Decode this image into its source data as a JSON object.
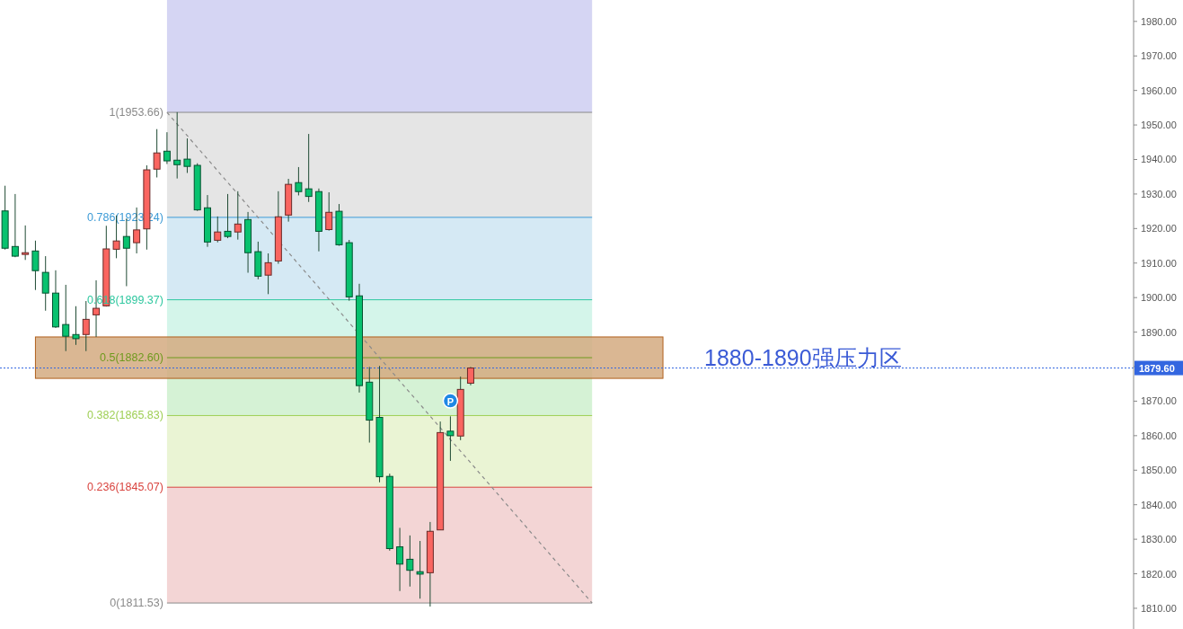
{
  "chart_data": {
    "type": "candlestick",
    "categories": [
      null,
      null,
      null,
      null,
      null,
      null,
      null,
      null,
      null,
      null,
      null,
      null,
      null,
      null,
      null,
      null,
      null,
      null,
      null,
      null,
      null,
      null,
      null,
      null,
      null,
      null,
      null,
      null,
      null,
      null,
      null,
      null,
      null,
      null,
      null,
      null,
      null,
      null,
      null,
      null,
      null,
      null,
      null,
      null,
      null,
      null,
      null,
      null,
      null,
      null,
      null,
      null,
      null,
      null,
      null,
      null,
      null,
      null,
      null,
      null,
      null,
      null,
      null,
      null,
      null,
      null,
      null,
      null,
      null,
      null,
      null,
      null,
      null,
      null,
      null,
      null,
      null,
      null,
      null,
      null,
      null,
      null,
      null,
      null,
      null,
      null,
      null,
      null,
      null,
      null,
      null,
      null,
      null,
      null,
      null,
      null,
      null,
      null,
      null,
      null,
      null,
      null,
      null,
      null,
      null,
      null,
      null,
      null,
      null,
      null,
      null,
      null
    ],
    "ohlc": [
      [
        1925.1,
        1932.4,
        1913.9,
        1914.3
      ],
      [
        1914.8,
        1930.0,
        1911.7,
        1912.0
      ],
      [
        1912.5,
        1920.9,
        1910.9,
        1913.0
      ],
      [
        1913.5,
        1916.5,
        1902.2,
        1907.8
      ],
      [
        1907.3,
        1912.0,
        1896.2,
        1901.3
      ],
      [
        1901.3,
        1907.9,
        1891.2,
        1891.5
      ],
      [
        1892.2,
        1903.7,
        1884.5,
        1888.8
      ],
      [
        1889.3,
        1897.5,
        1886.3,
        1888.1
      ],
      [
        1889.3,
        1899.0,
        1884.5,
        1893.7
      ],
      [
        1895.0,
        1905.0,
        1888.6,
        1896.9
      ],
      [
        1897.6,
        1920.8,
        1897.4,
        1914.1
      ],
      [
        1914.0,
        1923.8,
        1911.4,
        1916.4
      ],
      [
        1917.7,
        1922.9,
        1903.3,
        1914.3
      ],
      [
        1915.9,
        1926.1,
        1912.8,
        1919.6
      ],
      [
        1919.9,
        1938.3,
        1913.9,
        1937.0
      ],
      [
        1937.2,
        1948.8,
        1934.8,
        1941.9
      ],
      [
        1942.4,
        1947.9,
        1938.7,
        1939.6
      ],
      [
        1939.8,
        1953.7,
        1934.5,
        1938.5
      ],
      [
        1940.1,
        1946.1,
        1936.1,
        1938.0
      ],
      [
        1938.3,
        1938.9,
        1925.1,
        1925.4
      ],
      [
        1926.0,
        1929.7,
        1914.7,
        1916.1
      ],
      [
        1916.6,
        1923.5,
        1916.0,
        1919.0
      ],
      [
        1919.2,
        1930.0,
        1917.2,
        1917.7
      ],
      [
        1919.0,
        1930.8,
        1916.8,
        1921.3
      ],
      [
        1922.6,
        1924.8,
        1907.2,
        1913.0
      ],
      [
        1913.3,
        1916.2,
        1905.3,
        1906.2
      ],
      [
        1906.5,
        1912.8,
        1901.0,
        1910.1
      ],
      [
        1910.6,
        1930.8,
        1909.8,
        1923.4
      ],
      [
        1923.9,
        1934.4,
        1922.0,
        1932.8
      ],
      [
        1933.3,
        1937.8,
        1929.6,
        1930.7
      ],
      [
        1931.5,
        1947.4,
        1927.7,
        1929.3
      ],
      [
        1930.7,
        1931.6,
        1913.4,
        1919.2
      ],
      [
        1919.7,
        1930.5,
        1919.4,
        1924.7
      ],
      [
        1925.0,
        1927.1,
        1915.0,
        1915.3
      ],
      [
        1915.9,
        1916.7,
        1899.1,
        1900.2
      ],
      [
        1900.5,
        1904.0,
        1872.5,
        1874.5
      ],
      [
        1875.5,
        1879.9,
        1858.0,
        1864.5
      ],
      [
        1865.3,
        1880.2,
        1846.5,
        1848.1
      ],
      [
        1848.2,
        1849.0,
        1826.7,
        1827.3
      ],
      [
        1827.8,
        1833.3,
        1815.0,
        1822.8
      ],
      [
        1824.2,
        1831.1,
        1816.3,
        1821.0
      ],
      [
        1820.6,
        1829.5,
        1812.8,
        1819.9
      ],
      [
        1820.3,
        1835.0,
        1810.5,
        1832.3
      ],
      [
        1832.7,
        1864.1,
        1832.7,
        1860.9
      ],
      [
        1861.3,
        1865.6,
        1852.7,
        1860.0
      ],
      [
        1859.9,
        1877.1,
        1858.7,
        1873.4
      ],
      [
        1875.2,
        1879.9,
        1874.6,
        1879.6
      ],
      null,
      null,
      null,
      null,
      null,
      null,
      null,
      null,
      null,
      null,
      null,
      null,
      null,
      null,
      null,
      null,
      null,
      null,
      null,
      null,
      null,
      null,
      null,
      null,
      null,
      null,
      null,
      null,
      null,
      null,
      null,
      null,
      null,
      null,
      null,
      null,
      null,
      null,
      null,
      null,
      null,
      null,
      null,
      null,
      null,
      null,
      null,
      null,
      null,
      null,
      null,
      null,
      null,
      null,
      null,
      null,
      null,
      null,
      null,
      null,
      null,
      null,
      null,
      null,
      null
    ],
    "colors": [
      "#08c26f",
      "#08c26f",
      "#fa6560",
      "#08c26f",
      "#08c26f",
      "#08c26f",
      "#08c26f",
      "#08c26f",
      "#fa6560",
      "#fa6560",
      "#fa6560",
      "#fa6560",
      "#08c26f",
      "#fa6560",
      "#fa6560",
      "#fa6560",
      "#08c26f",
      "#08c26f",
      "#08c26f",
      "#08c26f",
      "#08c26f",
      "#fa6560",
      "#08c26f",
      "#fa6560",
      "#08c26f",
      "#08c26f",
      "#fa6560",
      "#fa6560",
      "#fa6560",
      "#08c26f",
      "#08c26f",
      "#08c26f",
      "#fa6560",
      "#08c26f",
      "#08c26f",
      "#08c26f",
      "#08c26f",
      "#08c26f",
      "#08c26f",
      "#08c26f",
      "#08c26f",
      "#08c26f",
      "#fa6560",
      "#fa6560",
      "#08c26f",
      "#fa6560",
      "#fa6560",
      null,
      null,
      null,
      null,
      null,
      null,
      null,
      null,
      null,
      null,
      null,
      null,
      null,
      null,
      null,
      null,
      null,
      null,
      null,
      null,
      null,
      null,
      null,
      null,
      null,
      null,
      null,
      null,
      null,
      null,
      null,
      null,
      null,
      null,
      null,
      null,
      null,
      null,
      null,
      null,
      null,
      null,
      null,
      null,
      null,
      null,
      null,
      null,
      null,
      null,
      null,
      null,
      null,
      null,
      null,
      null,
      null,
      null,
      null,
      null,
      null,
      null,
      null,
      null,
      null
    ],
    "series": [
      {
        "type": "line",
        "values": [
          null,
          null,
          null,
          null,
          null,
          null,
          null,
          null,
          null,
          null,
          null,
          null,
          null,
          null,
          null,
          null,
          1953.66,
          null,
          null,
          null,
          null,
          null,
          null,
          null,
          null,
          null,
          null,
          null,
          null,
          null,
          null,
          null,
          null,
          null,
          null,
          null,
          null,
          null,
          null,
          null,
          null,
          null,
          null,
          null,
          null,
          null,
          null,
          null,
          null,
          null,
          null,
          null,
          null,
          null,
          null,
          null,
          null,
          null,
          1811.53,
          null,
          null,
          null,
          null,
          null,
          null,
          null,
          null,
          null,
          null,
          null,
          null,
          null,
          null,
          null,
          null,
          null,
          null,
          null,
          null,
          null,
          null,
          null,
          null,
          null,
          null,
          null,
          null,
          null,
          null,
          null,
          null,
          null,
          null,
          null,
          null,
          null,
          null,
          null,
          null,
          null,
          null,
          null,
          null,
          null,
          null,
          null,
          null,
          null,
          null,
          null,
          null,
          null
        ],
        "color": "#8a8a8a",
        "line_style": "dashed"
      }
    ],
    "ylim": [
      1804,
      1986.2
    ],
    "yticks": [
      {
        "value": 1810,
        "label": "1810.00"
      },
      {
        "value": 1820,
        "label": "1820.00"
      },
      {
        "value": 1830,
        "label": "1830.00"
      },
      {
        "value": 1840,
        "label": "1840.00"
      },
      {
        "value": 1850,
        "label": "1850.00"
      },
      {
        "value": 1860,
        "label": "1860.00"
      },
      {
        "value": 1870,
        "label": "1870.00"
      },
      {
        "value": 1880,
        "label": null
      },
      {
        "value": 1890,
        "label": "1890.00"
      },
      {
        "value": 1900,
        "label": "1900.00"
      },
      {
        "value": 1910,
        "label": "1910.00"
      },
      {
        "value": 1920,
        "label": "1920.00"
      },
      {
        "value": 1930,
        "label": "1930.00"
      },
      {
        "value": 1940,
        "label": "1940.00"
      },
      {
        "value": 1950,
        "label": "1950.00"
      },
      {
        "value": 1960,
        "label": "1960.00"
      },
      {
        "value": 1970,
        "label": "1970.00"
      },
      {
        "value": 1980,
        "label": "1980.00"
      }
    ],
    "tick_labels": "y",
    "bands": [
      {
        "axis": "y",
        "from": 1953.66,
        "to": 1986.2,
        "color": "#d5d5f3"
      },
      {
        "axis": "y",
        "from": 1923.24,
        "to": 1953.66,
        "color": "#e5e5e5"
      },
      {
        "axis": "y",
        "from": 1899.37,
        "to": 1923.24,
        "color": "#d5e9f4"
      },
      {
        "axis": "y",
        "from": 1882.6,
        "to": 1899.37,
        "color": "#d4f5ea"
      },
      {
        "axis": "y",
        "from": 1865.83,
        "to": 1882.6,
        "color": "#d5f2d5"
      },
      {
        "axis": "y",
        "from": 1845.07,
        "to": 1865.83,
        "color": "#eaf4d4"
      },
      {
        "axis": "y",
        "from": 1811.53,
        "to": 1845.07,
        "color": "#f3d5d5"
      },
      {
        "axis": "y",
        "from": 1876.6,
        "to": 1888.6,
        "label": "1880-1890强压力区",
        "color": "#d4aa80"
      }
    ],
    "ref_lines": [
      {
        "axis": "y",
        "value": 1953.66,
        "label": "1(1953.66)",
        "color": "#8a8a8a"
      },
      {
        "axis": "y",
        "value": 1923.24,
        "label": "0.786(1923.24)",
        "color": "#3d9bd6"
      },
      {
        "axis": "y",
        "value": 1899.37,
        "label": "0.618(1899.37)",
        "color": "#2ec79f"
      },
      {
        "axis": "y",
        "value": 1882.6,
        "label": "0.5(1882.60)",
        "color": "#6f9a1e"
      },
      {
        "axis": "y",
        "value": 1865.83,
        "label": "0.382(1865.83)",
        "color": "#9fcf55"
      },
      {
        "axis": "y",
        "value": 1845.07,
        "label": "0.236(1845.07)",
        "color": "#d9443f"
      },
      {
        "axis": "y",
        "value": 1811.53,
        "label": "0(1811.53)",
        "color": "#8a8a8a"
      },
      {
        "axis": "y",
        "value": 1879.6,
        "label": "1879.60",
        "color": "#3366e0",
        "line_style": "dotted"
      }
    ],
    "annotations": [
      {
        "text": "P",
        "y": 1870.1
      }
    ]
  }
}
